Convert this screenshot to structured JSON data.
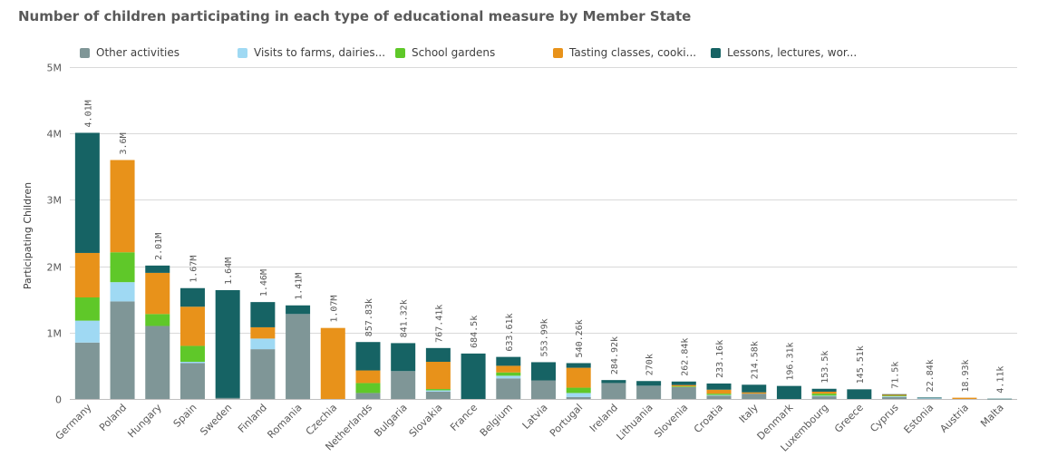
{
  "title": "Number of children participating in each type of educational measure by Member State",
  "colors": {
    "other": "#7f9697",
    "visits": "#9fd9f3",
    "gardens": "#5fc829",
    "tasting": "#e8921a",
    "lessons": "#166364",
    "grid": "#d9d9d9",
    "text": "#595959"
  },
  "legend": [
    {
      "key": "other",
      "label": "Other activities"
    },
    {
      "key": "visits",
      "label": "Visits to farms, dairies..."
    },
    {
      "key": "gardens",
      "label": "School gardens"
    },
    {
      "key": "tasting",
      "label": "Tasting classes, cooki..."
    },
    {
      "key": "lessons",
      "label": "Lessons, lectures, wor..."
    }
  ],
  "chart_data": {
    "type": "bar",
    "stacked": true,
    "ylabel": "Participating Children",
    "ylim": [
      0,
      5000000
    ],
    "yticks": [
      {
        "value": 0,
        "label": "0"
      },
      {
        "value": 1000000,
        "label": "1M"
      },
      {
        "value": 2000000,
        "label": "2M"
      },
      {
        "value": 3000000,
        "label": "3M"
      },
      {
        "value": 4000000,
        "label": "4M"
      },
      {
        "value": 5000000,
        "label": "5M"
      }
    ],
    "grid": true,
    "legend_position": "top",
    "categories": [
      "Germany",
      "Poland",
      "Hungary",
      "Spain",
      "Sweden",
      "Finland",
      "Romania",
      "Czechia",
      "Netherlands",
      "Bulgaria",
      "Slovakia",
      "France",
      "Belgium",
      "Latvia",
      "Portugal",
      "Ireland",
      "Lithuania",
      "Slovenia",
      "Croatia",
      "Italy",
      "Denmark",
      "Luxembourg",
      "Greece",
      "Cyprus",
      "Estonia",
      "Austria",
      "Malta"
    ],
    "totals": [
      "4.01M",
      "3.6M",
      "2.01M",
      "1.67M",
      "1.64M",
      "1.46M",
      "1.41M",
      "1.07M",
      "857.83k",
      "841.32k",
      "767.41k",
      "684.5k",
      "633.61k",
      "553.99k",
      "540.26k",
      "284.92k",
      "270k",
      "262.84k",
      "233.16k",
      "214.58k",
      "196.31k",
      "153.5k",
      "145.51k",
      "71.5k",
      "22.84k",
      "18.93k",
      "4.11k"
    ],
    "series": [
      {
        "name": "Other activities",
        "key": "other",
        "values": [
          850000,
          1470000,
          1100000,
          540000,
          15000,
          750000,
          1280000,
          0,
          90000,
          420000,
          110000,
          0,
          310000,
          280000,
          30000,
          240000,
          200000,
          180000,
          50000,
          80000,
          0,
          40000,
          0,
          30000,
          10000,
          0,
          0
        ]
      },
      {
        "name": "Visits to farms, dairies...",
        "key": "visits",
        "values": [
          330000,
          290000,
          0,
          20000,
          0,
          160000,
          0,
          0,
          0,
          0,
          20000,
          0,
          40000,
          0,
          60000,
          0,
          0,
          0,
          10000,
          0,
          0,
          10000,
          0,
          10000,
          5000,
          0,
          0
        ]
      },
      {
        "name": "School gardens",
        "key": "gardens",
        "values": [
          350000,
          450000,
          180000,
          240000,
          0,
          0,
          0,
          0,
          150000,
          0,
          20000,
          0,
          50000,
          0,
          80000,
          0,
          0,
          10000,
          20000,
          0,
          0,
          30000,
          0,
          10000,
          0,
          0,
          0
        ]
      },
      {
        "name": "Tasting classes, cooki...",
        "key": "tasting",
        "values": [
          670000,
          1390000,
          620000,
          590000,
          0,
          170000,
          0,
          1070000,
          190000,
          0,
          410000,
          0,
          100000,
          0,
          300000,
          0,
          0,
          20000,
          60000,
          20000,
          0,
          30000,
          0,
          20000,
          0,
          18930,
          0
        ]
      },
      {
        "name": "Lessons, lectures, wor...",
        "key": "lessons",
        "values": [
          1810000,
          0,
          110000,
          280000,
          1625000,
          380000,
          130000,
          0,
          427830,
          421320,
          207410,
          684500,
          133610,
          273990,
          70260,
          44920,
          70000,
          52840,
          93160,
          114580,
          196310,
          43500,
          145510,
          1500,
          7840,
          0,
          4110
        ]
      }
    ]
  }
}
